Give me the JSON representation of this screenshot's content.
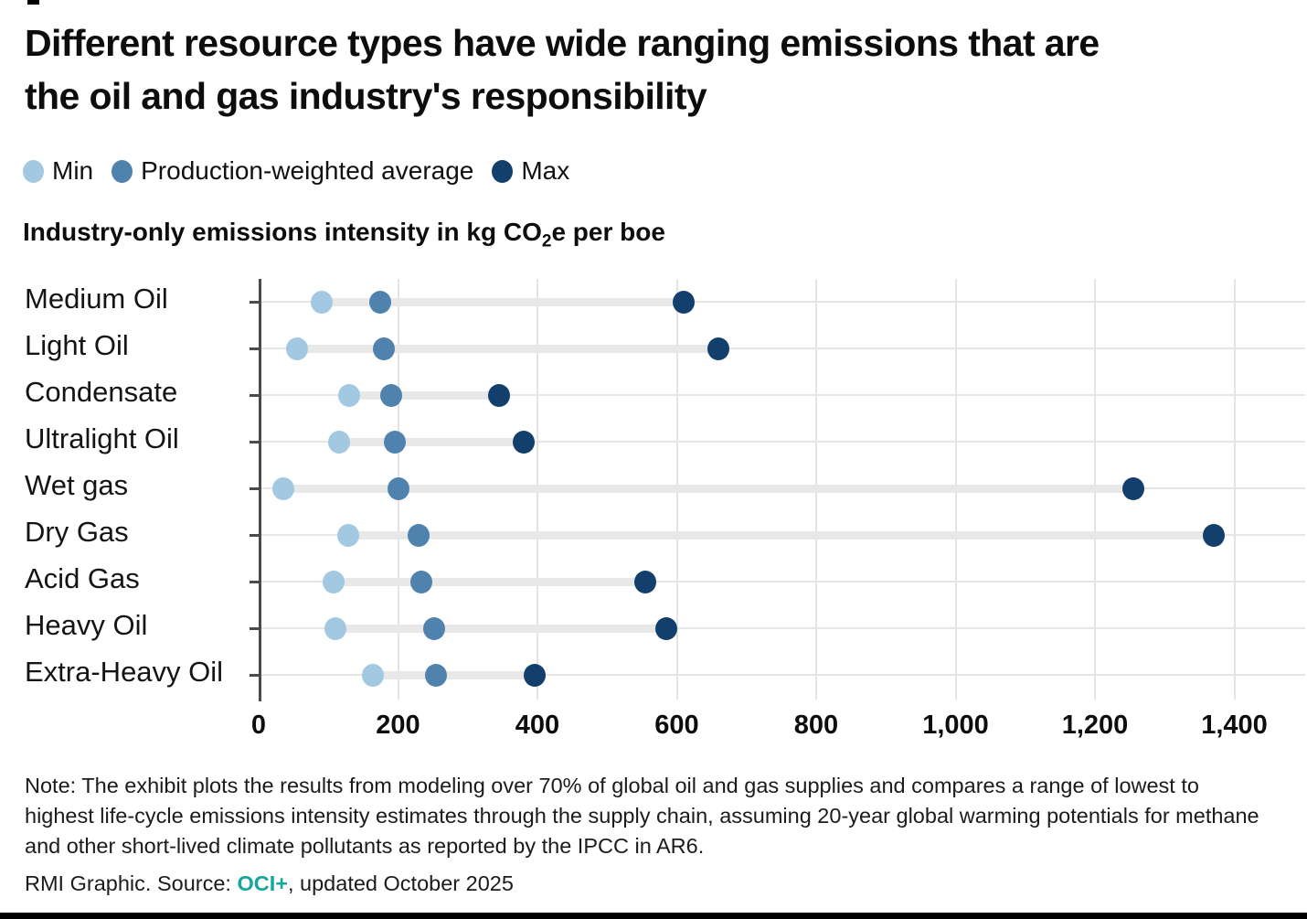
{
  "header": {
    "title": "Different resource types have wide ranging emissions that are the oil and gas industry's responsibility"
  },
  "legend": {
    "items": [
      {
        "label": "Min",
        "color": "#a3c8e2"
      },
      {
        "label": "Production-weighted average",
        "color": "#4f83ad"
      },
      {
        "label": "Max",
        "color": "#123f6b"
      }
    ]
  },
  "subtitle": {
    "prefix": "Industry-only emissions intensity in kg CO",
    "subscript": "2",
    "suffix": "e per boe"
  },
  "chart_data": {
    "type": "scatter",
    "variant": "dumbbell-range-dot-plot",
    "title": "Industry-only emissions intensity in kg CO2e per boe",
    "categories": [
      "Medium Oil",
      "Light Oil",
      "Condensate",
      "Ultralight Oil",
      "Wet gas",
      "Dry Gas",
      "Acid Gas",
      "Heavy Oil",
      "Extra-Heavy Oil"
    ],
    "series": [
      {
        "name": "Min",
        "color": "#a3c8e2",
        "values": [
          90,
          55,
          130,
          115,
          35,
          128,
          107,
          110,
          164
        ]
      },
      {
        "name": "Production-weighted average",
        "color": "#4f83ad",
        "values": [
          175,
          180,
          190,
          196,
          200,
          230,
          234,
          252,
          255
        ]
      },
      {
        "name": "Max",
        "color": "#123f6b",
        "values": [
          610,
          660,
          345,
          380,
          1255,
          1370,
          555,
          585,
          396
        ]
      }
    ],
    "xlim": [
      0,
      1500
    ],
    "xticks": [
      0,
      200,
      400,
      600,
      800,
      1000,
      1200,
      1400
    ],
    "xtick_labels": [
      "0",
      "200",
      "400",
      "600",
      "800",
      "1,000",
      "1,200",
      "1,400"
    ],
    "grid": "on",
    "legend_position": "top-left",
    "colors": {
      "grid": "#e6e6e6",
      "connector": "#e8e8e8",
      "axis": "#4a4a4a"
    }
  },
  "footer": {
    "note": "Note: The exhibit plots the results from modeling over 70% of global oil and gas supplies and compares a range of lowest to highest life-cycle emissions intensity estimates through the supply chain, assuming 20-year global warming potentials for methane and other short-lived climate pollutants as reported by the IPCC in AR6.",
    "source_prefix": "RMI Graphic. Source: ",
    "source_link": "OCI+",
    "source_suffix": ", updated October 2025",
    "accent_color": "#16a79c"
  }
}
